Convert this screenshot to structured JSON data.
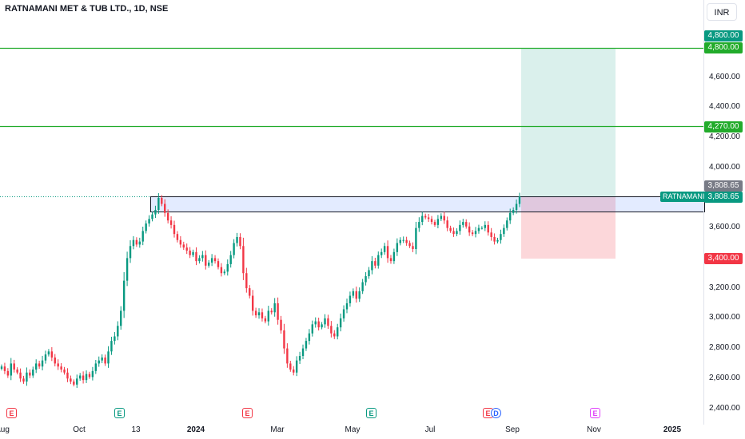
{
  "header": {
    "title": "RATNAMANI MET & TUB LTD., 1D, NSE"
  },
  "currency": "INR",
  "price_labels": {
    "upper_target": "4,800.00",
    "target_line": "4,800.00",
    "mid_line": "4,270.00",
    "last_grey": "3,808.65",
    "last_green": "3,808.65",
    "stop": "3,400.00"
  },
  "symbol_label": "RATNAMANI",
  "events": [
    {
      "type": "E",
      "color": "red"
    },
    {
      "type": "E",
      "color": "green"
    },
    {
      "type": "E",
      "color": "red"
    },
    {
      "type": "E",
      "color": "green"
    },
    {
      "type": "E",
      "color": "red"
    },
    {
      "type": "D",
      "color": "blue"
    },
    {
      "type": "E",
      "color": "purple"
    }
  ],
  "colors": {
    "up": "#089981",
    "down": "#f23645",
    "line": "#22ab2b",
    "zone": "#2962ff"
  },
  "chart_data": {
    "type": "candlestick",
    "title": "RATNAMANI MET & TUB LTD., 1D, NSE",
    "ylim": [
      2350,
      4900
    ],
    "y_ticks": [
      "4,600.00",
      "4,400.00",
      "4,200.00",
      "4,000.00",
      "3,600.00",
      "3,200.00",
      "3,000.00",
      "2,800.00",
      "2,600.00",
      "2,400.00"
    ],
    "x_ticks": [
      "Aug",
      "Oct",
      "13",
      "2024",
      "Mar",
      "May",
      "Jul",
      "Sep",
      "Nov",
      "2025"
    ],
    "horizontal_lines": [
      4800,
      4270
    ],
    "last_price": 3808.65,
    "resistance_zone": [
      3710,
      3808.65
    ],
    "position": {
      "entry": 3808.65,
      "target": 4800,
      "stop": 3400
    },
    "closes": [
      2680,
      2650,
      2620,
      2700,
      2660,
      2640,
      2600,
      2580,
      2640,
      2620,
      2660,
      2700,
      2680,
      2720,
      2760,
      2780,
      2740,
      2700,
      2680,
      2660,
      2640,
      2600,
      2580,
      2560,
      2600,
      2620,
      2590,
      2630,
      2610,
      2650,
      2700,
      2720,
      2740,
      2700,
      2780,
      2850,
      2880,
      2950,
      3050,
      3250,
      3400,
      3480,
      3520,
      3490,
      3510,
      3580,
      3630,
      3660,
      3690,
      3720,
      3800,
      3760,
      3700,
      3650,
      3620,
      3560,
      3520,
      3490,
      3470,
      3450,
      3420,
      3440,
      3380,
      3400,
      3420,
      3350,
      3370,
      3400,
      3380,
      3340,
      3300,
      3310,
      3360,
      3420,
      3500,
      3540,
      3480,
      3300,
      3200,
      3150,
      3050,
      3020,
      3040,
      3000,
      2980,
      3050,
      3040,
      3100,
      2990,
      2920,
      2800,
      2700,
      2660,
      2640,
      2720,
      2750,
      2800,
      2850,
      2900,
      2960,
      2980,
      2940,
      2960,
      3000,
      2950,
      2900,
      2880,
      2940,
      3000,
      3060,
      3100,
      3150,
      3180,
      3130,
      3180,
      3240,
      3280,
      3320,
      3380,
      3350,
      3420,
      3440,
      3480,
      3400,
      3380,
      3440,
      3500,
      3520,
      3520,
      3500,
      3480,
      3460,
      3600,
      3640,
      3680,
      3670,
      3660,
      3640,
      3620,
      3660,
      3680,
      3650,
      3600,
      3580,
      3560,
      3580,
      3620,
      3640,
      3610,
      3570,
      3560,
      3580,
      3600,
      3600,
      3620,
      3570,
      3540,
      3510,
      3520,
      3560,
      3600,
      3650,
      3700,
      3720,
      3760,
      3808.65
    ]
  }
}
